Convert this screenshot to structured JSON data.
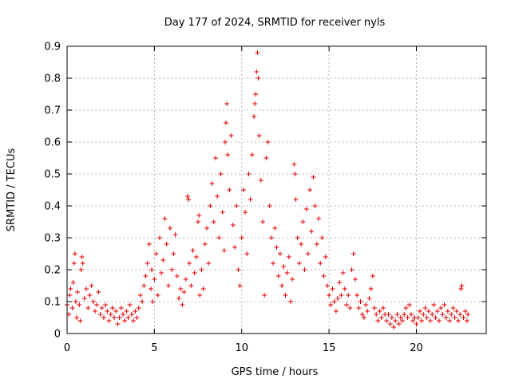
{
  "chart_data": {
    "type": "scatter",
    "title": "Day 177 of 2024, SRMTID for receiver nyls",
    "xlabel": "GPS time / hours",
    "ylabel": "SRMTID / TECUs",
    "xlim": [
      0,
      24
    ],
    "ylim": [
      0,
      0.9
    ],
    "xticks": [
      0,
      5,
      10,
      15,
      20
    ],
    "xtick_labels": [
      "0",
      "5",
      "10",
      "15",
      "20"
    ],
    "yticks": [
      0,
      0.1,
      0.2,
      0.3,
      0.4,
      0.5,
      0.6,
      0.7,
      0.8,
      0.9
    ],
    "ytick_labels": [
      "0",
      "0.1",
      "0.2",
      "0.3",
      "0.4",
      "0.5",
      "0.6",
      "0.7",
      "0.8",
      "0.9"
    ],
    "grid": true,
    "marker": "plus",
    "color": "#e00000",
    "series": [
      {
        "name": "SRMTID",
        "points": [
          [
            0.0,
            0.09
          ],
          [
            0.1,
            0.06
          ],
          [
            0.15,
            0.12
          ],
          [
            0.2,
            0.14
          ],
          [
            0.3,
            0.08
          ],
          [
            0.35,
            0.16
          ],
          [
            0.4,
            0.22
          ],
          [
            0.45,
            0.25
          ],
          [
            0.5,
            0.1
          ],
          [
            0.55,
            0.05
          ],
          [
            0.6,
            0.13
          ],
          [
            0.7,
            0.09
          ],
          [
            0.75,
            0.04
          ],
          [
            0.8,
            0.2
          ],
          [
            0.85,
            0.24
          ],
          [
            0.9,
            0.22
          ],
          [
            1.0,
            0.11
          ],
          [
            1.1,
            0.14
          ],
          [
            1.2,
            0.08
          ],
          [
            1.3,
            0.12
          ],
          [
            1.4,
            0.15
          ],
          [
            1.5,
            0.1
          ],
          [
            1.6,
            0.07
          ],
          [
            1.7,
            0.09
          ],
          [
            1.8,
            0.13
          ],
          [
            1.9,
            0.06
          ],
          [
            2.0,
            0.08
          ],
          [
            2.1,
            0.05
          ],
          [
            2.2,
            0.09
          ],
          [
            2.3,
            0.07
          ],
          [
            2.4,
            0.04
          ],
          [
            2.5,
            0.06
          ],
          [
            2.6,
            0.08
          ],
          [
            2.7,
            0.05
          ],
          [
            2.8,
            0.07
          ],
          [
            2.9,
            0.03
          ],
          [
            3.0,
            0.05
          ],
          [
            3.1,
            0.08
          ],
          [
            3.2,
            0.06
          ],
          [
            3.3,
            0.04
          ],
          [
            3.4,
            0.07
          ],
          [
            3.5,
            0.05
          ],
          [
            3.6,
            0.09
          ],
          [
            3.7,
            0.06
          ],
          [
            3.8,
            0.04
          ],
          [
            3.9,
            0.07
          ],
          [
            4.0,
            0.05
          ],
          [
            4.1,
            0.08
          ],
          [
            4.2,
            0.12
          ],
          [
            4.3,
            0.1
          ],
          [
            4.4,
            0.15
          ],
          [
            4.5,
            0.18
          ],
          [
            4.6,
            0.22
          ],
          [
            4.7,
            0.28
          ],
          [
            4.8,
            0.14
          ],
          [
            4.85,
            0.2
          ],
          [
            4.9,
            0.1
          ],
          [
            5.0,
            0.17
          ],
          [
            5.1,
            0.25
          ],
          [
            5.2,
            0.12
          ],
          [
            5.3,
            0.3
          ],
          [
            5.4,
            0.19
          ],
          [
            5.5,
            0.23
          ],
          [
            5.6,
            0.36
          ],
          [
            5.7,
            0.28
          ],
          [
            5.8,
            0.15
          ],
          [
            5.9,
            0.33
          ],
          [
            6.0,
            0.2
          ],
          [
            6.1,
            0.25
          ],
          [
            6.2,
            0.31
          ],
          [
            6.3,
            0.18
          ],
          [
            6.4,
            0.11
          ],
          [
            6.5,
            0.14
          ],
          [
            6.6,
            0.09
          ],
          [
            6.7,
            0.13
          ],
          [
            6.8,
            0.17
          ],
          [
            6.9,
            0.43
          ],
          [
            6.95,
            0.42
          ],
          [
            7.0,
            0.22
          ],
          [
            7.1,
            0.15
          ],
          [
            7.2,
            0.26
          ],
          [
            7.3,
            0.19
          ],
          [
            7.4,
            0.24
          ],
          [
            7.5,
            0.35
          ],
          [
            7.55,
            0.37
          ],
          [
            7.6,
            0.12
          ],
          [
            7.7,
            0.2
          ],
          [
            7.8,
            0.14
          ],
          [
            7.9,
            0.28
          ],
          [
            8.0,
            0.33
          ],
          [
            8.1,
            0.22
          ],
          [
            8.2,
            0.4
          ],
          [
            8.3,
            0.47
          ],
          [
            8.4,
            0.35
          ],
          [
            8.5,
            0.55
          ],
          [
            8.6,
            0.43
          ],
          [
            8.7,
            0.3
          ],
          [
            8.8,
            0.5
          ],
          [
            8.9,
            0.38
          ],
          [
            9.0,
            0.26
          ],
          [
            9.05,
            0.6
          ],
          [
            9.1,
            0.66
          ],
          [
            9.15,
            0.72
          ],
          [
            9.2,
            0.56
          ],
          [
            9.3,
            0.45
          ],
          [
            9.4,
            0.62
          ],
          [
            9.5,
            0.34
          ],
          [
            9.6,
            0.27
          ],
          [
            9.7,
            0.4
          ],
          [
            9.8,
            0.2
          ],
          [
            9.9,
            0.15
          ],
          [
            10.0,
            0.3
          ],
          [
            10.1,
            0.45
          ],
          [
            10.2,
            0.38
          ],
          [
            10.3,
            0.25
          ],
          [
            10.4,
            0.5
          ],
          [
            10.5,
            0.42
          ],
          [
            10.6,
            0.56
          ],
          [
            10.7,
            0.68
          ],
          [
            10.75,
            0.72
          ],
          [
            10.8,
            0.75
          ],
          [
            10.85,
            0.82
          ],
          [
            10.9,
            0.88
          ],
          [
            10.95,
            0.8
          ],
          [
            11.0,
            0.62
          ],
          [
            11.1,
            0.48
          ],
          [
            11.2,
            0.35
          ],
          [
            11.3,
            0.12
          ],
          [
            11.4,
            0.55
          ],
          [
            11.5,
            0.6
          ],
          [
            11.6,
            0.4
          ],
          [
            11.7,
            0.3
          ],
          [
            11.8,
            0.22
          ],
          [
            11.9,
            0.33
          ],
          [
            12.0,
            0.27
          ],
          [
            12.1,
            0.18
          ],
          [
            12.2,
            0.25
          ],
          [
            12.3,
            0.15
          ],
          [
            12.4,
            0.21
          ],
          [
            12.5,
            0.12
          ],
          [
            12.6,
            0.19
          ],
          [
            12.7,
            0.24
          ],
          [
            12.8,
            0.1
          ],
          [
            12.9,
            0.17
          ],
          [
            13.0,
            0.53
          ],
          [
            13.05,
            0.5
          ],
          [
            13.1,
            0.42
          ],
          [
            13.2,
            0.3
          ],
          [
            13.3,
            0.22
          ],
          [
            13.4,
            0.28
          ],
          [
            13.5,
            0.35
          ],
          [
            13.6,
            0.2
          ],
          [
            13.7,
            0.39
          ],
          [
            13.8,
            0.25
          ],
          [
            13.9,
            0.45
          ],
          [
            14.0,
            0.32
          ],
          [
            14.1,
            0.49
          ],
          [
            14.2,
            0.4
          ],
          [
            14.3,
            0.28
          ],
          [
            14.4,
            0.36
          ],
          [
            14.5,
            0.22
          ],
          [
            14.6,
            0.3
          ],
          [
            14.7,
            0.18
          ],
          [
            14.8,
            0.24
          ],
          [
            14.9,
            0.15
          ],
          [
            15.0,
            0.12
          ],
          [
            15.1,
            0.09
          ],
          [
            15.2,
            0.14
          ],
          [
            15.3,
            0.1
          ],
          [
            15.4,
            0.07
          ],
          [
            15.5,
            0.11
          ],
          [
            15.6,
            0.16
          ],
          [
            15.7,
            0.12
          ],
          [
            15.8,
            0.19
          ],
          [
            15.9,
            0.14
          ],
          [
            16.0,
            0.09
          ],
          [
            16.1,
            0.12
          ],
          [
            16.2,
            0.08
          ],
          [
            16.3,
            0.2
          ],
          [
            16.4,
            0.25
          ],
          [
            16.5,
            0.17
          ],
          [
            16.6,
            0.12
          ],
          [
            16.7,
            0.08
          ],
          [
            16.8,
            0.1
          ],
          [
            16.9,
            0.06
          ],
          [
            17.0,
            0.05
          ],
          [
            17.1,
            0.09
          ],
          [
            17.2,
            0.07
          ],
          [
            17.3,
            0.11
          ],
          [
            17.4,
            0.14
          ],
          [
            17.5,
            0.18
          ],
          [
            17.6,
            0.08
          ],
          [
            17.7,
            0.06
          ],
          [
            17.8,
            0.04
          ],
          [
            17.9,
            0.07
          ],
          [
            18.0,
            0.05
          ],
          [
            18.1,
            0.08
          ],
          [
            18.2,
            0.06
          ],
          [
            18.3,
            0.04
          ],
          [
            18.4,
            0.06
          ],
          [
            18.5,
            0.03
          ],
          [
            18.6,
            0.05
          ],
          [
            18.7,
            0.02
          ],
          [
            18.8,
            0.04
          ],
          [
            18.9,
            0.06
          ],
          [
            19.0,
            0.03
          ],
          [
            19.1,
            0.05
          ],
          [
            19.2,
            0.04
          ],
          [
            19.3,
            0.06
          ],
          [
            19.4,
            0.08
          ],
          [
            19.5,
            0.05
          ],
          [
            19.6,
            0.09
          ],
          [
            19.7,
            0.06
          ],
          [
            19.8,
            0.04
          ],
          [
            19.9,
            0.05
          ],
          [
            20.0,
            0.03
          ],
          [
            20.1,
            0.05
          ],
          [
            20.2,
            0.07
          ],
          [
            20.3,
            0.04
          ],
          [
            20.4,
            0.06
          ],
          [
            20.5,
            0.08
          ],
          [
            20.6,
            0.05
          ],
          [
            20.7,
            0.07
          ],
          [
            20.8,
            0.04
          ],
          [
            20.9,
            0.06
          ],
          [
            21.0,
            0.09
          ],
          [
            21.1,
            0.05
          ],
          [
            21.2,
            0.07
          ],
          [
            21.3,
            0.04
          ],
          [
            21.4,
            0.08
          ],
          [
            21.5,
            0.06
          ],
          [
            21.6,
            0.09
          ],
          [
            21.7,
            0.05
          ],
          [
            21.8,
            0.07
          ],
          [
            21.9,
            0.04
          ],
          [
            22.0,
            0.06
          ],
          [
            22.1,
            0.08
          ],
          [
            22.2,
            0.05
          ],
          [
            22.3,
            0.07
          ],
          [
            22.4,
            0.04
          ],
          [
            22.5,
            0.06
          ],
          [
            22.55,
            0.14
          ],
          [
            22.6,
            0.15
          ],
          [
            22.7,
            0.05
          ],
          [
            22.8,
            0.07
          ],
          [
            22.9,
            0.04
          ],
          [
            22.95,
            0.06
          ]
        ]
      }
    ]
  }
}
